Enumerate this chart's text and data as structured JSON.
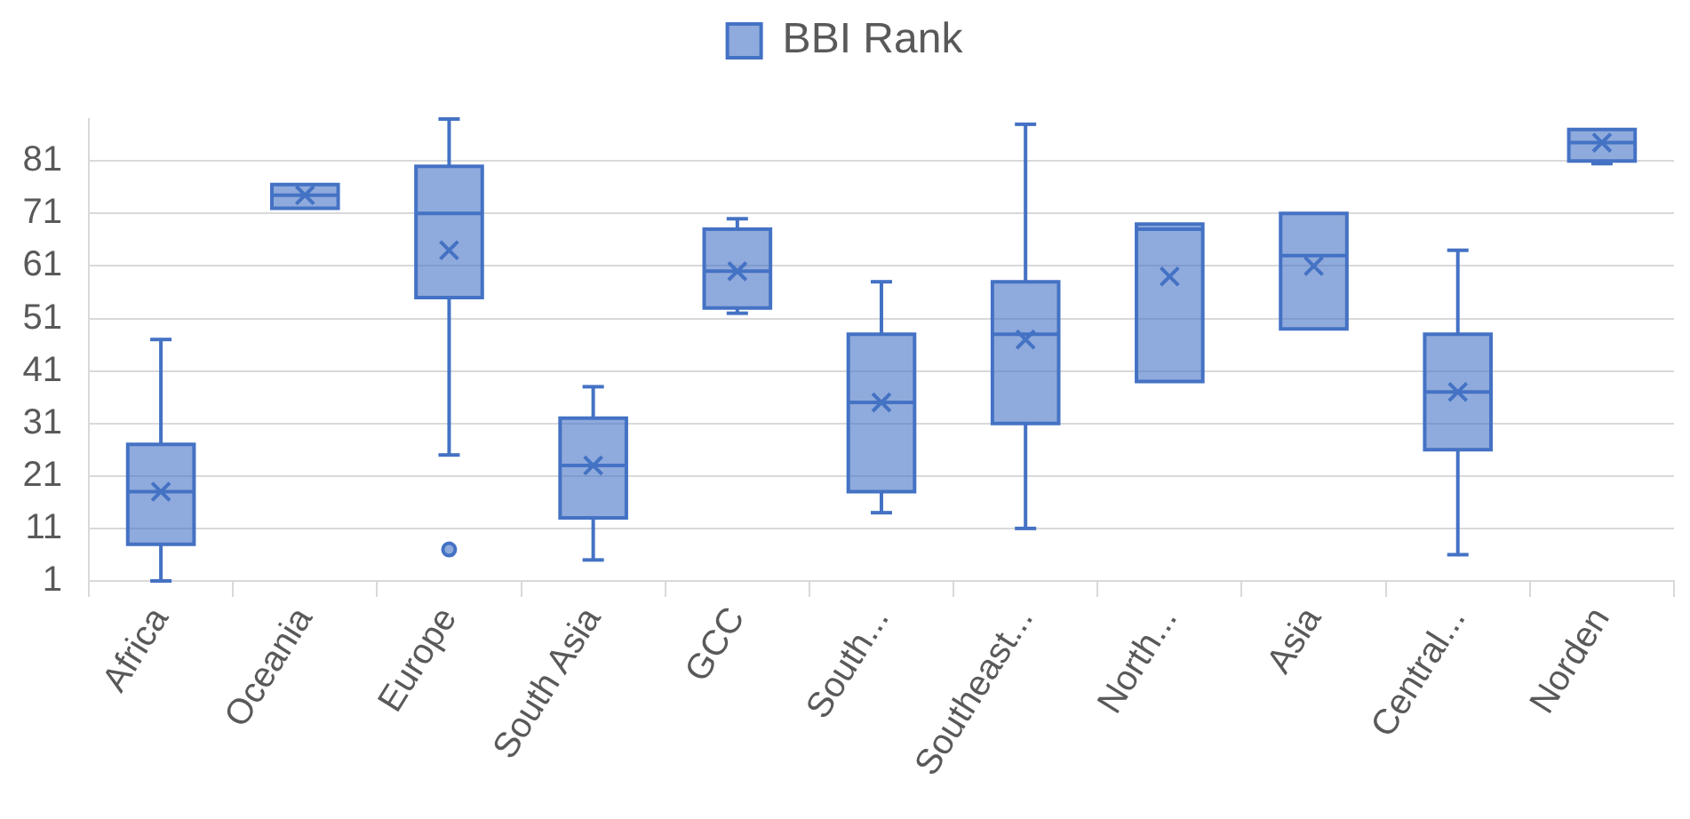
{
  "chart_data": {
    "type": "box",
    "legend": "top",
    "grid": "y",
    "categories": [
      "Africa",
      "Oceania",
      "Europe",
      "South Asia",
      "GCC",
      "South...",
      "Southeast...",
      "North...",
      "Asia",
      "Central...",
      "Norden"
    ],
    "series": [
      {
        "name": "BBI Rank",
        "color": "#4472c4",
        "boxes": [
          {
            "low": 1,
            "q1": 8,
            "median": 18,
            "q3": 27,
            "high": 47,
            "mean": 18
          },
          {
            "low": 72,
            "q1": 72,
            "median": 74.5,
            "q3": 76.5,
            "high": 76.5,
            "mean": 74.5
          },
          {
            "low": 25,
            "q1": 55,
            "median": 71,
            "q3": 80,
            "high": 89,
            "mean": 64,
            "outliers": [
              7
            ]
          },
          {
            "low": 5,
            "q1": 13,
            "median": 23,
            "q3": 32,
            "high": 38,
            "mean": 23
          },
          {
            "low": 52,
            "q1": 53,
            "median": 60,
            "q3": 68,
            "high": 70,
            "mean": 60
          },
          {
            "low": 14,
            "q1": 18,
            "median": 35,
            "q3": 48,
            "high": 58,
            "mean": 35
          },
          {
            "low": 11,
            "q1": 31,
            "median": 48,
            "q3": 58,
            "high": 88,
            "mean": 47
          },
          {
            "low": 39,
            "q1": 39,
            "median": 68,
            "q3": 69,
            "high": 69,
            "mean": 59
          },
          {
            "low": 49,
            "q1": 49,
            "median": 63,
            "q3": 71,
            "high": 71,
            "mean": 61
          },
          {
            "low": 6,
            "q1": 26,
            "median": 37,
            "q3": 48,
            "high": 64,
            "mean": 37
          },
          {
            "low": 80.5,
            "q1": 81,
            "median": 84.5,
            "q3": 87,
            "high": 87,
            "mean": 84.5
          }
        ]
      }
    ],
    "ylim": [
      1,
      89
    ],
    "yticks": [
      1,
      11,
      21,
      31,
      41,
      51,
      61,
      71,
      81
    ]
  }
}
